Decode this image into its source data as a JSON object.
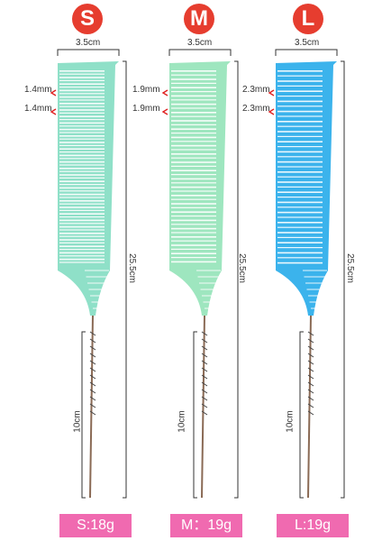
{
  "badges": {
    "s": "S",
    "m": "M",
    "l": "L"
  },
  "widths": {
    "s": "3.5cm",
    "m": "3.5cm",
    "l": "3.5cm"
  },
  "teeth": {
    "s": [
      "1.4mm",
      "1.4mm"
    ],
    "m": [
      "1.9mm",
      "1.9mm"
    ],
    "l": [
      "2.3mm",
      "2.3mm"
    ]
  },
  "lengths": {
    "s": "25.5cm",
    "m": "25.5cm",
    "l": "25.5cm"
  },
  "tails": {
    "s": "10cm",
    "m": "10cm",
    "l": "10cm"
  },
  "weights": {
    "s": "S:18g",
    "m": "M：19g",
    "l": "L:19g"
  },
  "colors": {
    "badge": "#e63d2f",
    "weight_label": "#f06ab0",
    "comb_s": "#8fe0c8",
    "comb_m": "#9ee6bf",
    "comb_l": "#3bb3ec",
    "arrow": "#e02020"
  }
}
